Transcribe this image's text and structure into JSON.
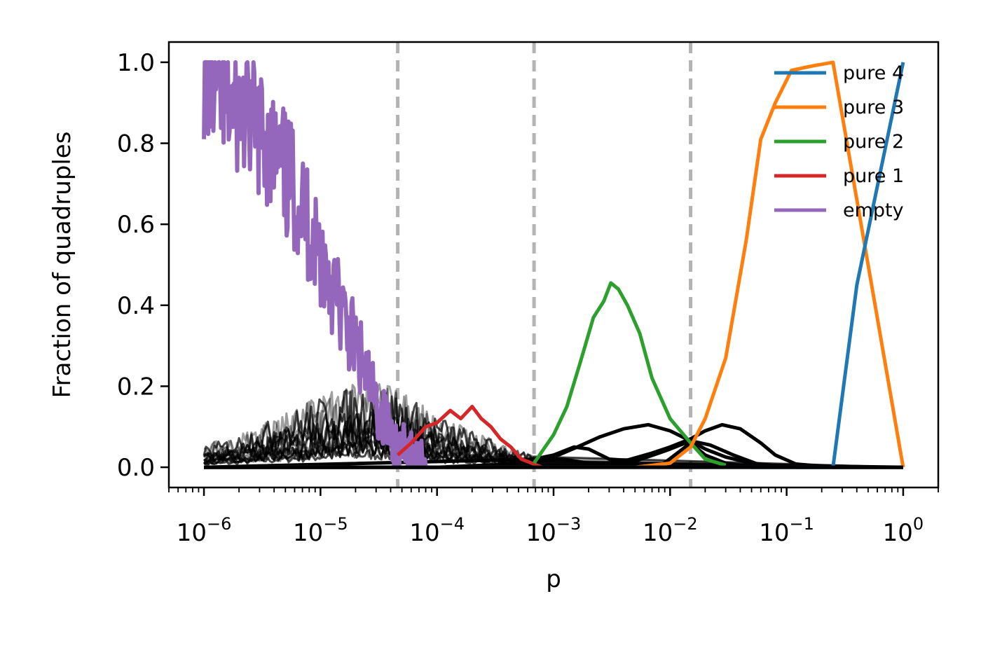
{
  "chart_data": {
    "type": "line",
    "title": "",
    "xlabel": "p",
    "ylabel": "Fraction of quadruples",
    "xscale": "log",
    "xlim": [
      5e-07,
      2.0
    ],
    "ylim": [
      -0.05,
      1.05
    ],
    "grid": false,
    "legend_position": "top-right",
    "x_ticks": [
      {
        "value": 1e-06,
        "base": "10",
        "exp": "−6"
      },
      {
        "value": 1e-05,
        "base": "10",
        "exp": "−5"
      },
      {
        "value": 0.0001,
        "base": "10",
        "exp": "−4"
      },
      {
        "value": 0.001,
        "base": "10",
        "exp": "−3"
      },
      {
        "value": 0.01,
        "base": "10",
        "exp": "−2"
      },
      {
        "value": 0.1,
        "base": "10",
        "exp": "−1"
      },
      {
        "value": 1,
        "base": "10",
        "exp": "0"
      }
    ],
    "y_ticks": [
      {
        "value": 0.0,
        "label": "0.0"
      },
      {
        "value": 0.2,
        "label": "0.2"
      },
      {
        "value": 0.4,
        "label": "0.4"
      },
      {
        "value": 0.6,
        "label": "0.6"
      },
      {
        "value": 0.8,
        "label": "0.8"
      },
      {
        "value": 1.0,
        "label": "1.0"
      }
    ],
    "vlines": [
      {
        "x": 4.6e-05,
        "color": "#b3b3b3",
        "style": "dashed"
      },
      {
        "x": 0.00068,
        "color": "#b3b3b3",
        "style": "dashed"
      },
      {
        "x": 0.015,
        "color": "#b3b3b3",
        "style": "dashed"
      }
    ],
    "series": [
      {
        "name": "pure 4",
        "color": "#1f77b4",
        "x": [
          1e-06,
          0.25,
          0.4,
          1.0
        ],
        "y": [
          0.0,
          0.0,
          0.45,
          1.0
        ]
      },
      {
        "name": "pure 3",
        "color": "#ff7f0e",
        "x": [
          1e-06,
          0.005,
          0.01,
          0.015,
          0.02,
          0.03,
          0.045,
          0.06,
          0.08,
          0.11,
          0.16,
          0.25,
          0.5,
          1.0
        ],
        "y": [
          0.0,
          0.0,
          0.01,
          0.05,
          0.12,
          0.27,
          0.56,
          0.81,
          0.9,
          0.98,
          0.99,
          1.0,
          0.5,
          0.0
        ]
      },
      {
        "name": "pure 2",
        "color": "#2ca02c",
        "x": [
          0.00068,
          0.0008,
          0.001,
          0.0013,
          0.0017,
          0.0022,
          0.0027,
          0.0031,
          0.0036,
          0.0043,
          0.0055,
          0.007,
          0.01,
          0.015,
          0.02,
          0.03
        ],
        "y": [
          0.01,
          0.04,
          0.08,
          0.15,
          0.26,
          0.37,
          0.41,
          0.455,
          0.44,
          0.4,
          0.33,
          0.22,
          0.12,
          0.06,
          0.02,
          0.005
        ]
      },
      {
        "name": "pure 1",
        "color": "#d62728",
        "x": [
          4.6e-05,
          6e-05,
          8e-05,
          0.0001,
          0.00013,
          0.00016,
          0.0002,
          0.00024,
          0.00029,
          0.00035,
          0.00043,
          0.00053,
          0.00065,
          0.0008
        ],
        "y": [
          0.03,
          0.06,
          0.1,
          0.11,
          0.14,
          0.12,
          0.15,
          0.12,
          0.1,
          0.07,
          0.05,
          0.02,
          0.01,
          0.0
        ]
      },
      {
        "name": "empty",
        "color": "#9467bd",
        "x": [
          1e-06,
          1.5e-06,
          2e-06,
          3e-06,
          4e-06,
          5e-06,
          6e-06,
          8e-06,
          1e-05,
          1.3e-05,
          1.6e-05,
          2e-05,
          2.5e-05,
          3e-05,
          3.5e-05,
          4e-05,
          4.6e-05,
          6e-05,
          8e-05
        ],
        "y": [
          0.97,
          0.9,
          0.88,
          0.83,
          0.77,
          0.72,
          0.68,
          0.6,
          0.53,
          0.44,
          0.36,
          0.3,
          0.22,
          0.15,
          0.12,
          0.08,
          0.05,
          0.03,
          0.02
        ]
      }
    ],
    "other_series": [
      {
        "color": "#000000",
        "x": [
          1e-06,
          0.0001,
          0.00068,
          0.001,
          0.0016,
          0.0025,
          0.004,
          0.0065,
          0.01,
          0.015,
          0.02,
          0.03,
          0.05,
          0.08,
          0.12,
          0.25,
          1.0
        ],
        "y": [
          0.0,
          0.0,
          0.01,
          0.025,
          0.05,
          0.075,
          0.095,
          0.105,
          0.09,
          0.065,
          0.045,
          0.025,
          0.01,
          0.004,
          0.0,
          0.0,
          0.0
        ]
      },
      {
        "color": "#000000",
        "x": [
          1e-06,
          0.00068,
          0.002,
          0.004,
          0.007,
          0.01,
          0.015,
          0.02,
          0.028,
          0.04,
          0.06,
          0.08,
          0.12,
          0.25,
          1.0
        ],
        "y": [
          0.0,
          0.0,
          0.005,
          0.015,
          0.035,
          0.05,
          0.07,
          0.09,
          0.105,
          0.095,
          0.06,
          0.03,
          0.008,
          0.0,
          0.0
        ]
      },
      {
        "color": "#000000",
        "x": [
          1e-06,
          0.00068,
          0.001,
          0.0015,
          0.002,
          0.003,
          0.005,
          0.008,
          0.01,
          0.015,
          0.022,
          0.035,
          0.06,
          1.0
        ],
        "y": [
          0.0,
          0.02,
          0.03,
          0.05,
          0.045,
          0.02,
          0.015,
          0.035,
          0.045,
          0.065,
          0.055,
          0.03,
          0.005,
          0.0
        ]
      },
      {
        "color": "#000000",
        "x": [
          1e-06,
          0.0003,
          0.0006,
          0.0008,
          0.0012,
          0.002,
          0.004,
          0.008,
          0.015,
          0.02,
          0.03,
          0.05,
          1.0
        ],
        "y": [
          0.0,
          0.0,
          0.015,
          0.02,
          0.02,
          0.01,
          0.005,
          0.0,
          0.06,
          0.03,
          0.01,
          0.0,
          0.0
        ]
      }
    ],
    "noise_band": {
      "color": "#000000",
      "x": [
        1e-06,
        2e-06,
        3e-06,
        5e-06,
        8e-06,
        1.2e-05,
        2e-05,
        3e-05,
        4.6e-05,
        7e-05,
        0.0001,
        0.00015,
        0.00025,
        0.0004,
        0.00068
      ],
      "upper": [
        0.04,
        0.06,
        0.08,
        0.1,
        0.12,
        0.14,
        0.15,
        0.16,
        0.14,
        0.12,
        0.1,
        0.08,
        0.06,
        0.04,
        0.02
      ],
      "count": 14
    }
  }
}
